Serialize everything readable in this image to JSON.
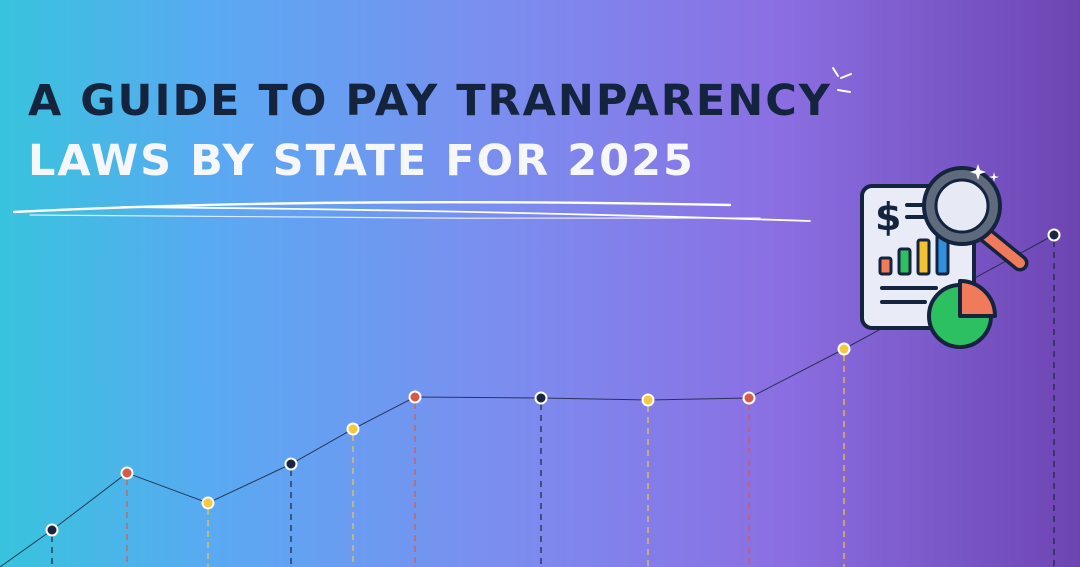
{
  "banner": {
    "title_line_1": "A GUIDE TO PAY TRANPARENCY",
    "title_line_2": "LAWS BY STATE FOR 2025",
    "colors": {
      "dark_navy": "#14243f",
      "red_point": "#d65a4a",
      "yellow_point": "#f4c93c",
      "dark_point": "#1b2440",
      "bar_orange": "#f07b5a",
      "bar_green": "#2dc060",
      "bar_yellow": "#f2c230",
      "bar_blue": "#2f8fe0",
      "pie_green": "#2dc060",
      "pie_orange": "#f07b5a"
    },
    "illustration": {
      "icons": [
        "report-document-icon",
        "dollar-sign-icon",
        "bar-chart-icon",
        "magnifying-glass-icon",
        "pie-chart-icon",
        "sparkle-icon"
      ],
      "dollar_symbol": "$"
    },
    "line_chart_points": [
      {
        "color": "dark"
      },
      {
        "color": "red"
      },
      {
        "color": "yellow"
      },
      {
        "color": "dark"
      },
      {
        "color": "yellow"
      },
      {
        "color": "red"
      },
      {
        "color": "dark"
      },
      {
        "color": "yellow"
      },
      {
        "color": "red"
      },
      {
        "color": "yellow"
      },
      {
        "color": "dark"
      }
    ]
  }
}
